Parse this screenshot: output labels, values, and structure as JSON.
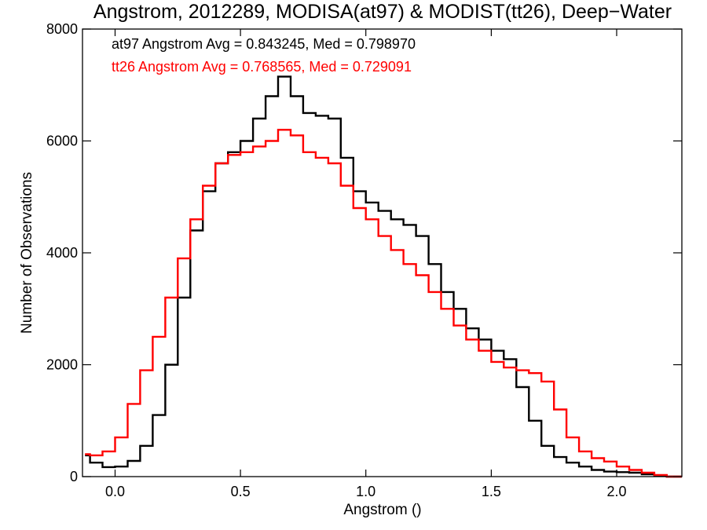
{
  "chart_data": {
    "type": "line",
    "title": "Angstrom, 2012289, MODISA(at97) & MODIST(tt26), Deep−Water",
    "xlabel": "Angstrom ()",
    "ylabel": "Number of Observations",
    "xlim": [
      -0.13,
      2.26
    ],
    "ylim": [
      0,
      8000
    ],
    "xticks": [
      0.0,
      0.5,
      1.0,
      1.5,
      2.0
    ],
    "xtick_labels": [
      "0.0",
      "0.5",
      "1.0",
      "1.5",
      "2.0"
    ],
    "yticks": [
      0,
      2000,
      4000,
      6000,
      8000
    ],
    "ytick_labels": [
      "0",
      "2000",
      "4000",
      "6000",
      "8000"
    ],
    "grid": false,
    "annotations": [
      {
        "text": "at97 Angstrom Avg = 0.843245, Med = 0.798970",
        "color": "#000000"
      },
      {
        "text": "tt26 Angstrom Avg = 0.768565, Med = 0.729091",
        "color": "#ff0000"
      }
    ],
    "series": [
      {
        "name": "at97",
        "color": "#000000",
        "x": [
          -0.12,
          -0.1,
          -0.05,
          0.0,
          0.05,
          0.1,
          0.15,
          0.2,
          0.25,
          0.3,
          0.35,
          0.4,
          0.45,
          0.5,
          0.55,
          0.6,
          0.65,
          0.7,
          0.75,
          0.8,
          0.85,
          0.9,
          0.95,
          1.0,
          1.05,
          1.1,
          1.15,
          1.2,
          1.25,
          1.3,
          1.35,
          1.4,
          1.45,
          1.5,
          1.55,
          1.6,
          1.65,
          1.7,
          1.75,
          1.8,
          1.85,
          1.9,
          1.95,
          2.0,
          2.05,
          2.1,
          2.15,
          2.2,
          2.25
        ],
        "y": [
          380,
          250,
          170,
          180,
          280,
          550,
          1100,
          2000,
          3200,
          4400,
          5100,
          5600,
          5800,
          6000,
          6400,
          6800,
          7150,
          6800,
          6500,
          6450,
          6400,
          5700,
          5100,
          4900,
          4750,
          4600,
          4500,
          4300,
          3800,
          3300,
          3000,
          2650,
          2450,
          2250,
          2100,
          1600,
          1000,
          550,
          350,
          250,
          180,
          120,
          90,
          80,
          70,
          40,
          20,
          0,
          0
        ]
      },
      {
        "name": "tt26",
        "color": "#ff0000",
        "x": [
          -0.12,
          -0.1,
          -0.05,
          0.0,
          0.05,
          0.1,
          0.15,
          0.2,
          0.25,
          0.3,
          0.35,
          0.4,
          0.45,
          0.5,
          0.55,
          0.6,
          0.65,
          0.7,
          0.75,
          0.8,
          0.85,
          0.9,
          0.95,
          1.0,
          1.05,
          1.1,
          1.15,
          1.2,
          1.25,
          1.3,
          1.35,
          1.4,
          1.45,
          1.5,
          1.55,
          1.6,
          1.65,
          1.7,
          1.75,
          1.8,
          1.85,
          1.9,
          1.95,
          2.0,
          2.05,
          2.1,
          2.15,
          2.2,
          2.25
        ],
        "y": [
          400,
          380,
          450,
          700,
          1300,
          1900,
          2500,
          3200,
          3900,
          4600,
          5200,
          5600,
          5750,
          5800,
          5900,
          6000,
          6200,
          6100,
          5800,
          5700,
          5600,
          5200,
          4800,
          4600,
          4300,
          4050,
          3800,
          3600,
          3300,
          3000,
          2700,
          2450,
          2250,
          2050,
          1950,
          1900,
          1850,
          1700,
          1200,
          700,
          450,
          330,
          270,
          180,
          120,
          70,
          30,
          0,
          0
        ]
      }
    ]
  }
}
